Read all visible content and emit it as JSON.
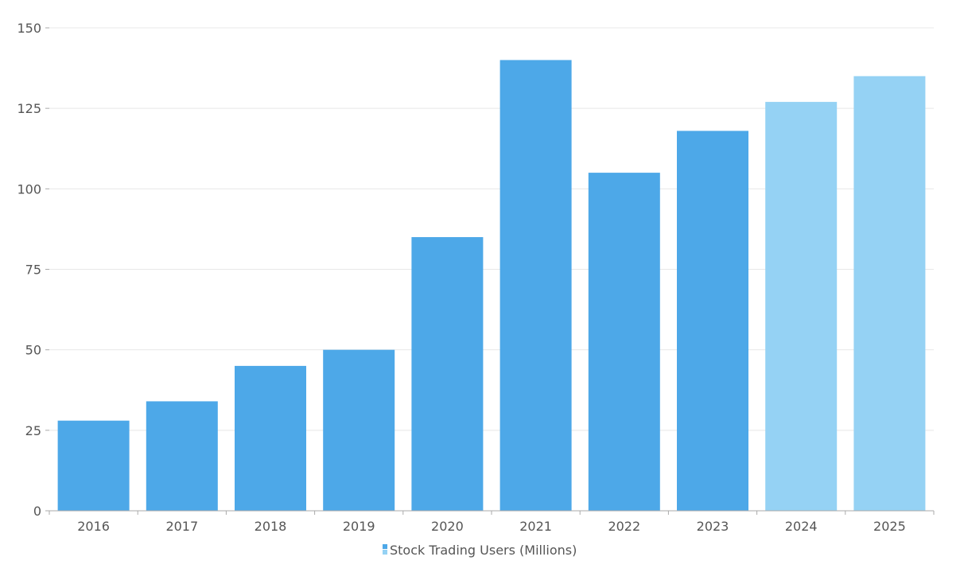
{
  "chart_data": {
    "type": "bar",
    "categories": [
      "2016",
      "2017",
      "2018",
      "2019",
      "2020",
      "2021",
      "2022",
      "2023",
      "2024",
      "2025"
    ],
    "series": [
      {
        "name": "Stock Trading Users (Millions)",
        "values": [
          28,
          34,
          45,
          50,
          85,
          140,
          105,
          118,
          127,
          135
        ],
        "projected": [
          false,
          false,
          false,
          false,
          false,
          false,
          false,
          false,
          true,
          true
        ]
      }
    ],
    "title": "",
    "xlabel": "",
    "ylabel": "",
    "ylim": [
      0,
      150
    ],
    "yticks": [
      "0",
      "25",
      "50",
      "75",
      "100",
      "125",
      "150"
    ],
    "grid": true,
    "legend_position": "bottom",
    "colors": {
      "actual": "#4DA8E8",
      "projected": "#95D2F4",
      "grid": "#E8E8E8",
      "axis": "#AAAAAA"
    }
  }
}
